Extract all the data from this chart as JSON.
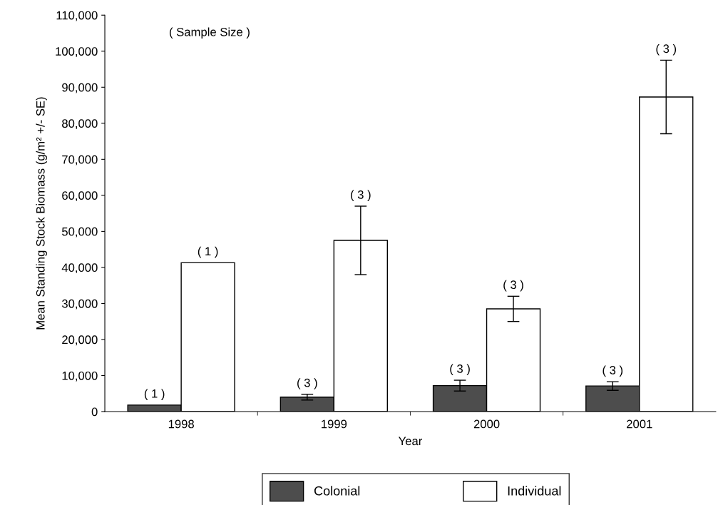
{
  "chart_data": {
    "type": "bar",
    "xlabel": "Year",
    "ylabel": "Mean Standing Stock Biomass (g/m² +/- SE)",
    "annotations": [
      "( Sample Size )",
      "( 1 )",
      "( 1 )",
      "( 3 )",
      "( 3 )",
      "( 3 )",
      "( 3 )",
      "( 3 )",
      "( 3 )"
    ],
    "categories": [
      "1998",
      "1999",
      "2000",
      "2001"
    ],
    "series": [
      {
        "name": "Colonial",
        "color": "#4d4d4d",
        "values": [
          1800,
          4000,
          7200,
          7100
        ],
        "errors": [
          null,
          800,
          1500,
          1200
        ]
      },
      {
        "name": "Individual",
        "color": "#ffffff",
        "values": [
          41300,
          47500,
          28500,
          87300
        ],
        "errors": [
          null,
          9500,
          3500,
          10200
        ]
      }
    ],
    "ylim": [
      0,
      110000
    ],
    "yticks": [
      {
        "value": 0,
        "label": "0"
      },
      {
        "value": 10000,
        "label": "10,000"
      },
      {
        "value": 20000,
        "label": "20,000"
      },
      {
        "value": 30000,
        "label": "30,000"
      },
      {
        "value": 40000,
        "label": "40,000"
      },
      {
        "value": 50000,
        "label": "50,000"
      },
      {
        "value": 60000,
        "label": "60,000"
      },
      {
        "value": 70000,
        "label": "70,000"
      },
      {
        "value": 80000,
        "label": "80,000"
      },
      {
        "value": 90000,
        "label": "90,000"
      },
      {
        "value": 100000,
        "label": "100,000"
      },
      {
        "value": 110000,
        "label": "110,000"
      }
    ],
    "legend": "bottom"
  }
}
